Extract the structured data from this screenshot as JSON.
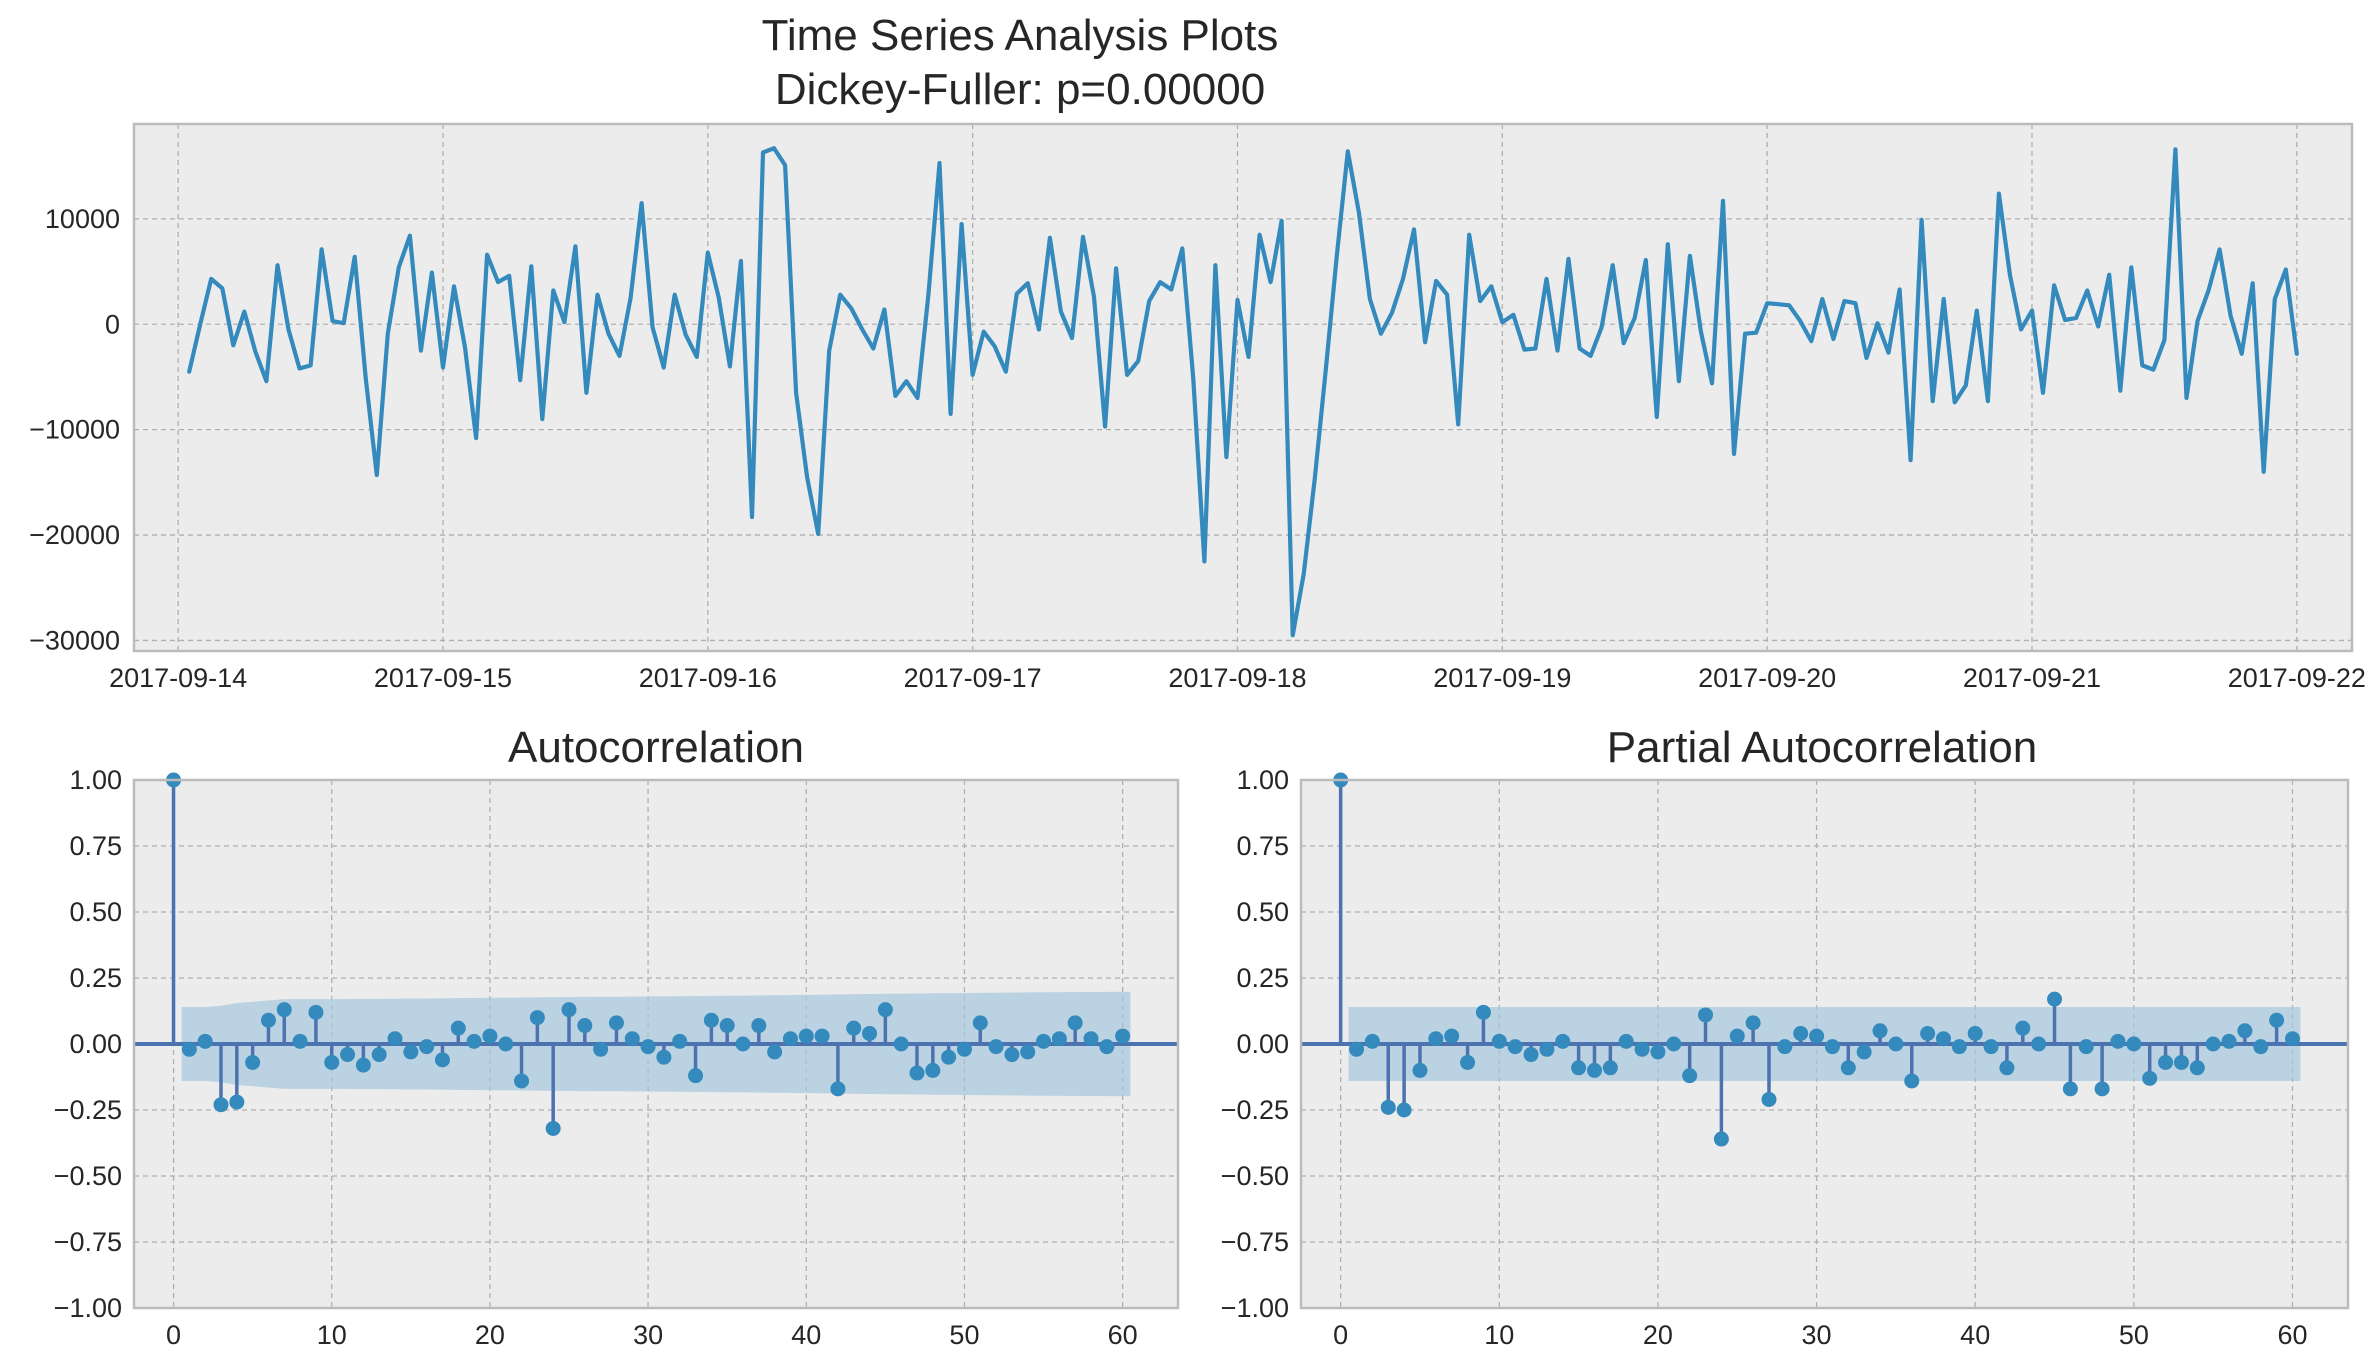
{
  "figure": {
    "suptitle_line1": "Time Series Analysis Plots",
    "suptitle_line2": "Dickey-Fuller: p=0.00000"
  },
  "colors": {
    "background": "#ffffff",
    "axes_face": "#ececec",
    "grid": "#b0b0b0",
    "spine": "#bbbbbb",
    "series": "#348abd",
    "stem": "#4c72b0",
    "confidence_band": "#a6c8de"
  },
  "chart_data": [
    {
      "type": "line",
      "title": "",
      "xlabel": "",
      "ylabel": "",
      "grid": true,
      "x_tick_labels": [
        "2017-09-14",
        "2017-09-15",
        "2017-09-16",
        "2017-09-17",
        "2017-09-18",
        "2017-09-19",
        "2017-09-20",
        "2017-09-21",
        "2017-09-22"
      ],
      "y_ticks": [
        10000,
        0,
        -10000,
        -20000,
        -30000
      ],
      "y_tick_labels": [
        "10000",
        "0",
        "−10000",
        "−20000",
        "−30000"
      ],
      "x_range": [
        "2017-09-13 20:00",
        "2017-09-22 05:00"
      ],
      "ylim": [
        -31000,
        19000
      ],
      "x_start": "2017-09-14 01:00",
      "x_step_hours": 1,
      "series": [
        {
          "values": [
            -4500,
            0,
            4300,
            3400,
            -2000,
            1200,
            -2600,
            -5400,
            5600,
            -500,
            -4200,
            -3900,
            7100,
            300,
            100,
            6400,
            -5100,
            -14300,
            -900,
            5400,
            8400,
            -2500,
            4900,
            -4100,
            3600,
            -2200,
            -10800,
            6600,
            4000,
            4600,
            -5300,
            5500,
            -9000,
            3200,
            200,
            7400,
            -6500,
            2800,
            -900,
            -3000,
            2500,
            11500,
            -300,
            -4100,
            2800,
            -1000,
            -3100,
            6800,
            2500,
            -4000,
            6000,
            -18300,
            16300,
            16700,
            15100,
            -6500,
            -14500,
            -19900,
            -2500,
            2800,
            1500,
            -500,
            -2300,
            1400,
            -6800,
            -5400,
            -7000,
            2900,
            15300,
            -8500,
            9500,
            -4800,
            -700,
            -2100,
            -4500,
            2900,
            3900,
            -500,
            8200,
            1200,
            -1300,
            8300,
            2600,
            -9700,
            5300,
            -4800,
            -3500,
            2200,
            4000,
            3300,
            7200,
            -5200,
            -22500,
            5600,
            -12600,
            2300,
            -3100,
            8500,
            4000,
            9800,
            -29500,
            -23700,
            -14700,
            -4300,
            6500,
            16400,
            10600,
            2400,
            -900,
            1100,
            4300,
            9000,
            -1700,
            4100,
            2800,
            -9500,
            8500,
            2200,
            3600,
            200,
            900,
            -2400,
            -2300,
            4300,
            -2500,
            6200,
            -2300,
            -3000,
            -300,
            5600,
            -1800,
            600,
            6100,
            -8800,
            7600,
            -5400,
            6500,
            -700,
            -5600,
            11700,
            -12300,
            -900,
            -800,
            2000,
            1900,
            1800,
            300,
            -1600,
            2400,
            -1400,
            2200,
            2000,
            -3200,
            100,
            -2700,
            3300,
            -12900,
            9900,
            -7300,
            2400,
            -7400,
            -5800,
            1300,
            -7300,
            12400,
            4700,
            -500,
            1300,
            -6500,
            3700,
            400,
            600,
            3200,
            -200,
            4700,
            -6300,
            5400,
            -3900,
            -4300,
            -1500,
            16600,
            -7000,
            300,
            3200,
            7100,
            800,
            -2800,
            3900,
            -14000,
            2400,
            5200,
            -2800
          ]
        }
      ]
    },
    {
      "type": "bar",
      "title": "Autocorrelation",
      "xlabel": "",
      "ylabel": "",
      "grid": true,
      "xlim": [
        -2.5,
        63.5
      ],
      "ylim": [
        -1.0,
        1.0
      ],
      "x_ticks": [
        0,
        10,
        20,
        30,
        40,
        50,
        60
      ],
      "y_ticks": [
        1.0,
        0.75,
        0.5,
        0.25,
        0.0,
        -0.25,
        -0.5,
        -0.75,
        -1.0
      ],
      "y_tick_labels": [
        "1.00",
        "0.75",
        "0.50",
        "0.25",
        "0.00",
        "−0.25",
        "−0.50",
        "−0.75",
        "−1.00"
      ],
      "lags": [
        0,
        1,
        2,
        3,
        4,
        5,
        6,
        7,
        8,
        9,
        10,
        11,
        12,
        13,
        14,
        15,
        16,
        17,
        18,
        19,
        20,
        21,
        22,
        23,
        24,
        25,
        26,
        27,
        28,
        29,
        30,
        31,
        32,
        33,
        34,
        35,
        36,
        37,
        38,
        39,
        40,
        41,
        42,
        43,
        44,
        45,
        46,
        47,
        48,
        49,
        50,
        51,
        52,
        53,
        54,
        55,
        56,
        57,
        58,
        59,
        60
      ],
      "values": [
        1.0,
        -0.02,
        0.01,
        -0.23,
        -0.22,
        -0.07,
        0.09,
        0.13,
        0.01,
        0.12,
        -0.07,
        -0.04,
        -0.08,
        -0.04,
        0.02,
        -0.03,
        -0.01,
        -0.06,
        0.06,
        0.01,
        0.03,
        0.0,
        -0.14,
        0.1,
        -0.32,
        0.13,
        0.07,
        -0.02,
        0.08,
        0.02,
        -0.01,
        -0.05,
        0.01,
        -0.12,
        0.09,
        0.07,
        0.0,
        0.07,
        -0.03,
        0.02,
        0.03,
        0.03,
        -0.17,
        0.06,
        0.04,
        0.13,
        0.0,
        -0.11,
        -0.1,
        -0.05,
        -0.02,
        0.08,
        -0.01,
        -0.04,
        -0.03,
        0.01,
        0.02,
        0.08,
        0.02,
        -0.01,
        0.03
      ],
      "confidence_band": {
        "lags": [
          1,
          2,
          3,
          4,
          5,
          6,
          7,
          10,
          15,
          20,
          25,
          30,
          35,
          40,
          45,
          50,
          55,
          60
        ],
        "upper": [
          0.14,
          0.14,
          0.145,
          0.155,
          0.16,
          0.165,
          0.17,
          0.17,
          0.172,
          0.175,
          0.178,
          0.18,
          0.183,
          0.186,
          0.19,
          0.193,
          0.196,
          0.198
        ],
        "lower": [
          -0.14,
          -0.14,
          -0.145,
          -0.155,
          -0.16,
          -0.165,
          -0.17,
          -0.17,
          -0.172,
          -0.175,
          -0.178,
          -0.18,
          -0.183,
          -0.186,
          -0.19,
          -0.193,
          -0.196,
          -0.198
        ]
      }
    },
    {
      "type": "bar",
      "title": "Partial Autocorrelation",
      "xlabel": "",
      "ylabel": "",
      "grid": true,
      "xlim": [
        -2.5,
        63.5
      ],
      "ylim": [
        -1.0,
        1.0
      ],
      "x_ticks": [
        0,
        10,
        20,
        30,
        40,
        50,
        60
      ],
      "y_ticks": [
        1.0,
        0.75,
        0.5,
        0.25,
        0.0,
        -0.25,
        -0.5,
        -0.75,
        -1.0
      ],
      "y_tick_labels": [
        "1.00",
        "0.75",
        "0.50",
        "0.25",
        "0.00",
        "−0.25",
        "−0.50",
        "−0.75",
        "−1.00"
      ],
      "lags": [
        0,
        1,
        2,
        3,
        4,
        5,
        6,
        7,
        8,
        9,
        10,
        11,
        12,
        13,
        14,
        15,
        16,
        17,
        18,
        19,
        20,
        21,
        22,
        23,
        24,
        25,
        26,
        27,
        28,
        29,
        30,
        31,
        32,
        33,
        34,
        35,
        36,
        37,
        38,
        39,
        40,
        41,
        42,
        43,
        44,
        45,
        46,
        47,
        48,
        49,
        50,
        51,
        52,
        53,
        54,
        55,
        56,
        57,
        58,
        59,
        60
      ],
      "values": [
        1.0,
        -0.02,
        0.01,
        -0.24,
        -0.25,
        -0.1,
        0.02,
        0.03,
        -0.07,
        0.12,
        0.01,
        -0.01,
        -0.04,
        -0.02,
        0.01,
        -0.09,
        -0.1,
        -0.09,
        0.01,
        -0.02,
        -0.03,
        0.0,
        -0.12,
        0.11,
        -0.36,
        0.03,
        0.08,
        -0.21,
        -0.01,
        0.04,
        0.03,
        -0.01,
        -0.09,
        -0.03,
        0.05,
        0.0,
        -0.14,
        0.04,
        0.02,
        -0.01,
        0.04,
        -0.01,
        -0.09,
        0.06,
        0.0,
        0.17,
        -0.17,
        -0.01,
        -0.17,
        0.01,
        0.0,
        -0.13,
        -0.07,
        -0.07,
        -0.09,
        0.0,
        0.01,
        0.05,
        -0.01,
        0.09,
        0.02
      ],
      "confidence_band": {
        "lags": [
          1,
          60
        ],
        "upper": [
          0.14,
          0.14
        ],
        "lower": [
          -0.14,
          -0.14
        ]
      }
    }
  ]
}
